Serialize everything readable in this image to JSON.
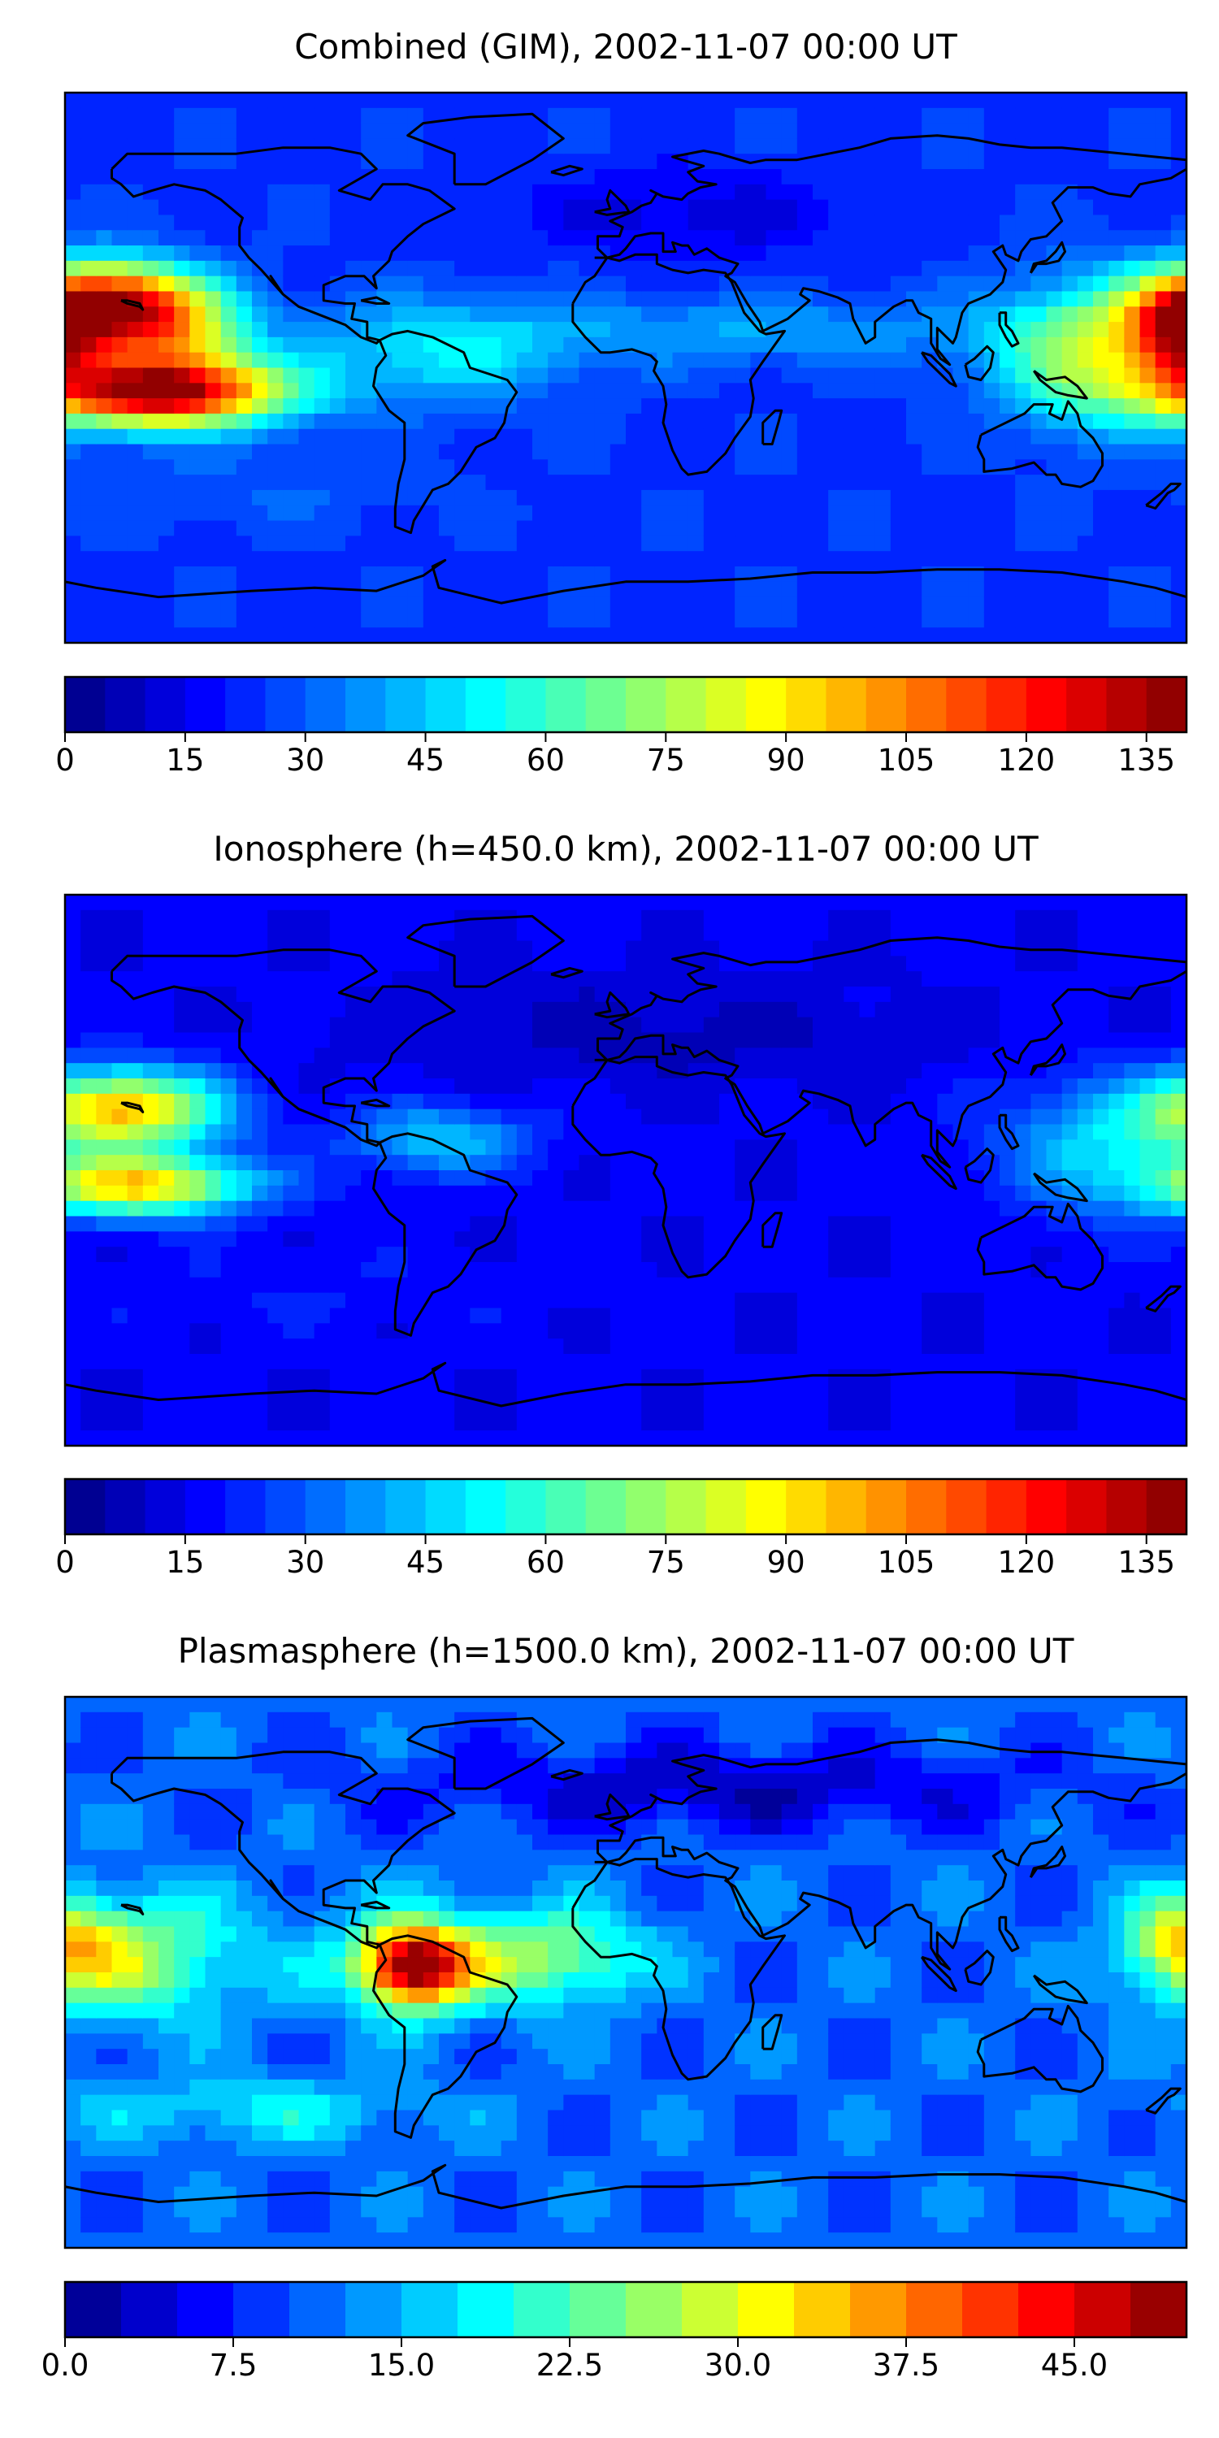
{
  "chart_data": [
    {
      "type": "heatmap",
      "title": "Combined (GIM), 2002-11-07 00:00 UT",
      "colorbar": {
        "ticks": [
          "0",
          "15",
          "30",
          "45",
          "60",
          "75",
          "90",
          "105",
          "120",
          "135"
        ],
        "vmin": 0,
        "vmax": 140,
        "step": 5
      },
      "field": {
        "background": 24,
        "blobs": [
          {
            "lon": -165,
            "lat": 20,
            "slon": 20,
            "slat": 10,
            "v": 110
          },
          {
            "lon": -150,
            "lat": -8,
            "slon": 28,
            "slat": 8,
            "v": 115
          },
          {
            "lon": -140,
            "lat": 10,
            "slon": 15,
            "slat": 10,
            "v": 35
          },
          {
            "lon": -60,
            "lat": 5,
            "slon": 30,
            "slat": 12,
            "v": 25
          },
          {
            "lon": 40,
            "lat": 12,
            "slon": 60,
            "slat": 8,
            "v": 16
          },
          {
            "lon": 150,
            "lat": 5,
            "slon": 22,
            "slat": 16,
            "v": 52
          },
          {
            "lon": 178,
            "lat": 10,
            "slon": 10,
            "slat": 10,
            "v": 55
          },
          {
            "lon": 20,
            "lat": 50,
            "slon": 35,
            "slat": 10,
            "v": -12
          },
          {
            "lon": -120,
            "lat": -40,
            "slon": 40,
            "slat": 10,
            "v": 6
          }
        ]
      }
    },
    {
      "type": "heatmap",
      "title": "Ionosphere  (h=450.0 km), 2002-11-07 00:00 UT",
      "colorbar": {
        "ticks": [
          "0",
          "15",
          "30",
          "45",
          "60",
          "75",
          "90",
          "105",
          "120",
          "135"
        ],
        "vmin": 0,
        "vmax": 140,
        "step": 5
      },
      "field": {
        "background": 16,
        "blobs": [
          {
            "lon": -160,
            "lat": 20,
            "slon": 22,
            "slat": 9,
            "v": 78
          },
          {
            "lon": -155,
            "lat": -5,
            "slon": 25,
            "slat": 7,
            "v": 75
          },
          {
            "lon": -60,
            "lat": 10,
            "slon": 20,
            "slat": 8,
            "v": 30
          },
          {
            "lon": 155,
            "lat": 8,
            "slon": 25,
            "slat": 15,
            "v": 30
          },
          {
            "lon": 10,
            "lat": 45,
            "slon": 60,
            "slat": 12,
            "v": -8
          },
          {
            "lon": -100,
            "lat": -40,
            "slon": 50,
            "slat": 10,
            "v": 4
          }
        ]
      }
    },
    {
      "type": "heatmap",
      "title": "Plasmasphere (h=1500.0 km), 2002-11-07 00:00 UT",
      "colorbar": {
        "ticks": [
          "0.0",
          "7.5",
          "15.0",
          "22.5",
          "30.0",
          "37.5",
          "45.0"
        ],
        "vmin": 0,
        "vmax": 50,
        "step": 2.5
      },
      "field": {
        "background": 11,
        "blobs": [
          {
            "lon": -68,
            "lat": 2,
            "slon": 12,
            "slat": 9,
            "v": 36
          },
          {
            "lon": -60,
            "lat": 5,
            "slon": 30,
            "slat": 14,
            "v": 8
          },
          {
            "lon": -160,
            "lat": 5,
            "slon": 25,
            "slat": 14,
            "v": 16
          },
          {
            "lon": -20,
            "lat": 5,
            "slon": 20,
            "slat": 10,
            "v": 12
          },
          {
            "lon": 178,
            "lat": 10,
            "slon": 12,
            "slat": 10,
            "v": 14
          },
          {
            "lon": -120,
            "lat": -45,
            "slon": 40,
            "slat": 8,
            "v": 7
          },
          {
            "lon": 30,
            "lat": 60,
            "slon": 70,
            "slat": 10,
            "v": -8
          }
        ]
      }
    }
  ]
}
